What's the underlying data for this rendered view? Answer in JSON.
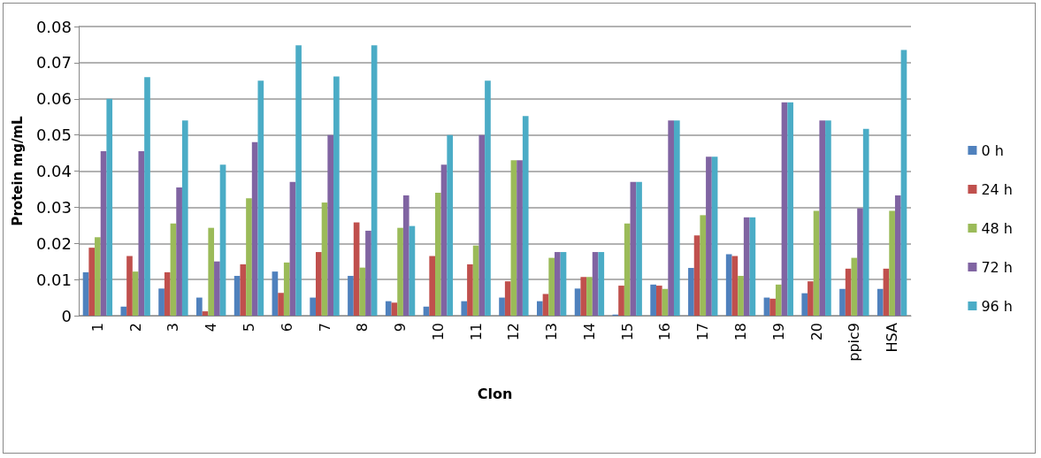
{
  "chart_data": {
    "type": "bar",
    "xlabel": "Clon",
    "ylabel": "Protein mg/mL",
    "categories": [
      "1",
      "2",
      "3",
      "4",
      "5",
      "6",
      "7",
      "8",
      "9",
      "10",
      "11",
      "12",
      "13",
      "14",
      "15",
      "16",
      "17",
      "18",
      "19",
      "20",
      "ppic9",
      "HSA"
    ],
    "series": [
      {
        "name": "0 h",
        "color": "#4f81bd",
        "values": [
          0.012,
          0.0025,
          0.0075,
          0.005,
          0.011,
          0.0122,
          0.005,
          0.011,
          0.004,
          0.0025,
          0.004,
          0.005,
          0.004,
          0.0075,
          0.0003,
          0.0086,
          0.0132,
          0.017,
          0.005,
          0.0062,
          0.0074,
          0.0074
        ]
      },
      {
        "name": "24 h",
        "color": "#c0504d",
        "values": [
          0.0188,
          0.0165,
          0.012,
          0.0012,
          0.0142,
          0.0063,
          0.0176,
          0.0258,
          0.0036,
          0.0165,
          0.0142,
          0.0095,
          0.006,
          0.0107,
          0.0083,
          0.0083,
          0.0222,
          0.0165,
          0.0047,
          0.0095,
          0.013,
          0.013
        ]
      },
      {
        "name": "48 h",
        "color": "#9bbb59",
        "values": [
          0.0217,
          0.0122,
          0.0255,
          0.0243,
          0.0325,
          0.0147,
          0.0313,
          0.0133,
          0.0243,
          0.034,
          0.0194,
          0.043,
          0.016,
          0.0107,
          0.0255,
          0.0074,
          0.0278,
          0.011,
          0.0086,
          0.029,
          0.016,
          0.029
        ]
      },
      {
        "name": "72 h",
        "color": "#8064a2",
        "values": [
          0.0455,
          0.0455,
          0.0355,
          0.015,
          0.048,
          0.037,
          0.05,
          0.0235,
          0.0333,
          0.0418,
          0.05,
          0.043,
          0.0176,
          0.0176,
          0.037,
          0.054,
          0.044,
          0.0272,
          0.059,
          0.054,
          0.0297,
          0.0333
        ]
      },
      {
        "name": "96 h",
        "color": "#4bacc6",
        "values": [
          0.06,
          0.066,
          0.054,
          0.0418,
          0.065,
          0.0748,
          0.0662,
          0.0748,
          0.0248,
          0.05,
          0.065,
          0.0552,
          0.0176,
          0.0176,
          0.037,
          0.054,
          0.044,
          0.0272,
          0.059,
          0.054,
          0.0517,
          0.0735
        ]
      }
    ],
    "ylim": [
      0,
      0.08
    ],
    "yticks": [
      0,
      0.01,
      0.02,
      0.03,
      0.04,
      0.05,
      0.06,
      0.07,
      0.08
    ],
    "grid": "y",
    "legend": "right"
  }
}
